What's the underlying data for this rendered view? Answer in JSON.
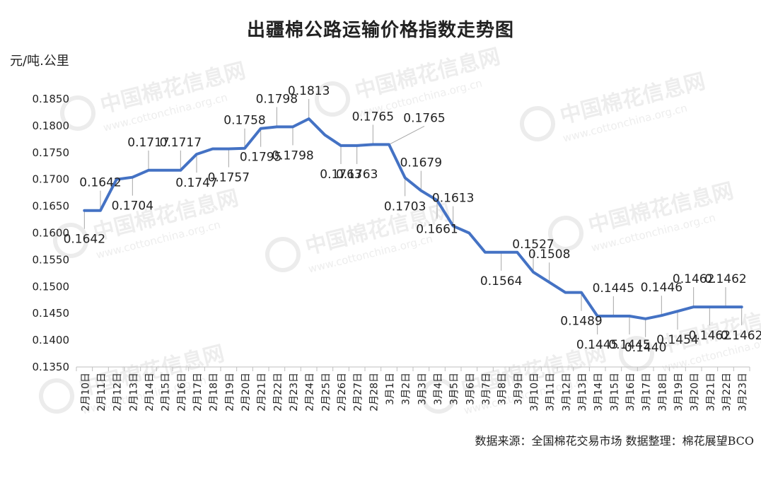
{
  "chart_data": {
    "type": "line",
    "title": "出疆棉公路运输价格指数走势图",
    "ylabel": "元/吨.公里",
    "xlabel": "",
    "ylim": [
      0.135,
      0.185
    ],
    "yticks": [
      "0.1850",
      "0.1800",
      "0.1750",
      "0.1700",
      "0.1650",
      "0.1600",
      "0.1550",
      "0.1500",
      "0.1450",
      "0.1400",
      "0.1350"
    ],
    "categories": [
      "2月10日",
      "2月11日",
      "2月12日",
      "2月13日",
      "2月14日",
      "2月15日",
      "2月16日",
      "2月17日",
      "2月18日",
      "2月19日",
      "2月20日",
      "2月21日",
      "2月22日",
      "2月23日",
      "2月24日",
      "2月25日",
      "2月26日",
      "2月27日",
      "2月28日",
      "3月1日",
      "3月2日",
      "3月3日",
      "3月4日",
      "3月5日",
      "3月6日",
      "3月7日",
      "3月8日",
      "3月9日",
      "3月10日",
      "3月11日",
      "3月12日",
      "3月13日",
      "3月14日",
      "3月15日",
      "3月16日",
      "3月17日",
      "3月18日",
      "3月19日",
      "3月20日",
      "3月21日",
      "3月22日",
      "3月23日"
    ],
    "series": [
      {
        "name": "出疆棉公路运输价格指数",
        "values": [
          0.1642,
          0.1642,
          0.17,
          0.1704,
          0.1717,
          0.1717,
          0.1717,
          0.1747,
          0.1757,
          0.1757,
          0.1758,
          0.1795,
          0.1798,
          0.1798,
          0.1813,
          0.1783,
          0.1763,
          0.1763,
          0.1765,
          0.1765,
          0.1703,
          0.1679,
          0.1661,
          0.1613,
          0.16,
          0.1564,
          0.1564,
          0.1564,
          0.1527,
          0.1508,
          0.1489,
          0.1489,
          0.1445,
          0.1445,
          0.1445,
          0.144,
          0.1446,
          0.1454,
          0.1462,
          0.1462,
          0.1462,
          0.1462
        ]
      }
    ],
    "data_labels": [
      {
        "idx": 0,
        "text": "0.1642",
        "pos": "below"
      },
      {
        "idx": 1,
        "text": "0.1642",
        "pos": "above"
      },
      {
        "idx": 3,
        "text": "0.1704",
        "pos": "below"
      },
      {
        "idx": 4,
        "text": "0.1717",
        "pos": "above"
      },
      {
        "idx": 6,
        "text": "0.1717",
        "pos": "above"
      },
      {
        "idx": 7,
        "text": "0.1747",
        "pos": "below"
      },
      {
        "idx": 9,
        "text": "0.1757",
        "pos": "below"
      },
      {
        "idx": 10,
        "text": "0.1758",
        "pos": "above"
      },
      {
        "idx": 11,
        "text": "0.1795",
        "pos": "below"
      },
      {
        "idx": 12,
        "text": "0.1798",
        "pos": "above"
      },
      {
        "idx": 13,
        "text": "0.1798",
        "pos": "below"
      },
      {
        "idx": 14,
        "text": "0.1813",
        "pos": "above"
      },
      {
        "idx": 16,
        "text": "0.1763",
        "pos": "below"
      },
      {
        "idx": 17,
        "text": "0.1763",
        "pos": "below"
      },
      {
        "idx": 18,
        "text": "0.1765",
        "pos": "above"
      },
      {
        "idx": 19,
        "text": "0.1765",
        "pos": "above-right"
      },
      {
        "idx": 20,
        "text": "0.1703",
        "pos": "below"
      },
      {
        "idx": 21,
        "text": "0.1679",
        "pos": "above"
      },
      {
        "idx": 22,
        "text": "0.1661",
        "pos": "below"
      },
      {
        "idx": 23,
        "text": "0.1613",
        "pos": "above"
      },
      {
        "idx": 26,
        "text": "0.1564",
        "pos": "below"
      },
      {
        "idx": 28,
        "text": "0.1527",
        "pos": "above"
      },
      {
        "idx": 29,
        "text": "0.1508",
        "pos": "above"
      },
      {
        "idx": 31,
        "text": "0.1489",
        "pos": "below"
      },
      {
        "idx": 32,
        "text": "0.1445",
        "pos": "below"
      },
      {
        "idx": 33,
        "text": "0.1445",
        "pos": "above"
      },
      {
        "idx": 34,
        "text": "0.1445",
        "pos": "below"
      },
      {
        "idx": 35,
        "text": "0.1440",
        "pos": "below"
      },
      {
        "idx": 36,
        "text": "0.1446",
        "pos": "above"
      },
      {
        "idx": 37,
        "text": "0.1454",
        "pos": "below"
      },
      {
        "idx": 38,
        "text": "0.1462",
        "pos": "above"
      },
      {
        "idx": 39,
        "text": "0.1462",
        "pos": "below"
      },
      {
        "idx": 40,
        "text": "0.1462",
        "pos": "above"
      },
      {
        "idx": 41,
        "text": "0.1462",
        "pos": "below"
      }
    ],
    "line_color": "#4472C4",
    "grid": false,
    "legend": "none"
  },
  "source_note": "数据来源：全国棉花交易市场   数据整理：棉花展望BCO",
  "watermark": {
    "text": "中国棉花信息网",
    "sub": "www.cottonchina.org.cn"
  }
}
